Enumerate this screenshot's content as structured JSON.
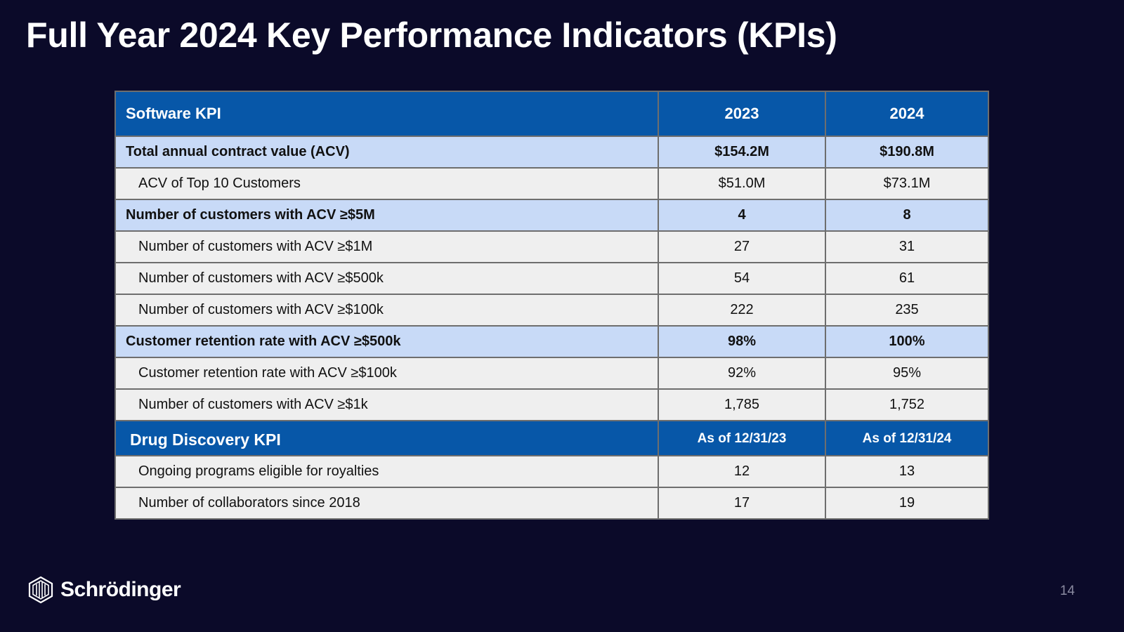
{
  "slide": {
    "title": "Full Year 2024 Key Performance Indicators (KPIs)",
    "page_number": "14"
  },
  "brand": {
    "name": "Schrödinger",
    "logo_icon": "hexagon-logo-icon"
  },
  "software": {
    "header": {
      "label": "Software KPI",
      "col1": "2023",
      "col2": "2024"
    },
    "rows": [
      {
        "label": "Total annual contract value (ACV)",
        "v2023": "$154.2M",
        "v2024": "$190.8M",
        "emphasis": true
      },
      {
        "label": "ACV of Top 10 Customers",
        "v2023": "$51.0M",
        "v2024": "$73.1M",
        "emphasis": false
      },
      {
        "label": "Number of customers with ACV ≥$5M",
        "v2023": "4",
        "v2024": "8",
        "emphasis": true
      },
      {
        "label": "Number of customers with ACV ≥$1M",
        "v2023": "27",
        "v2024": "31",
        "emphasis": false
      },
      {
        "label": "Number of customers with ACV ≥$500k",
        "v2023": "54",
        "v2024": "61",
        "emphasis": false
      },
      {
        "label": "Number of customers with ACV ≥$100k",
        "v2023": "222",
        "v2024": "235",
        "emphasis": false
      },
      {
        "label": "Customer retention rate with ACV ≥$500k",
        "v2023": "98%",
        "v2024": "100%",
        "emphasis": true
      },
      {
        "label": "Customer retention rate with ACV ≥$100k",
        "v2023": "92%",
        "v2024": "95%",
        "emphasis": false
      },
      {
        "label": "Number of customers with ACV ≥$1k",
        "v2023": "1,785",
        "v2024": "1,752",
        "emphasis": false
      }
    ]
  },
  "drug_discovery": {
    "header": {
      "label": "Drug Discovery KPI",
      "col1": "As of 12/31/23",
      "col2": "As of 12/31/24"
    },
    "rows": [
      {
        "label": "Ongoing programs eligible for royalties",
        "v2023": "12",
        "v2024": "13",
        "emphasis": false
      },
      {
        "label": "Number of collaborators since 2018",
        "v2023": "17",
        "v2024": "19",
        "emphasis": false
      }
    ]
  },
  "colors": {
    "background": "#0b0a29",
    "header_blue": "#0757a8",
    "emphasis_row": "#c8daf7",
    "sub_row": "#efefef"
  }
}
